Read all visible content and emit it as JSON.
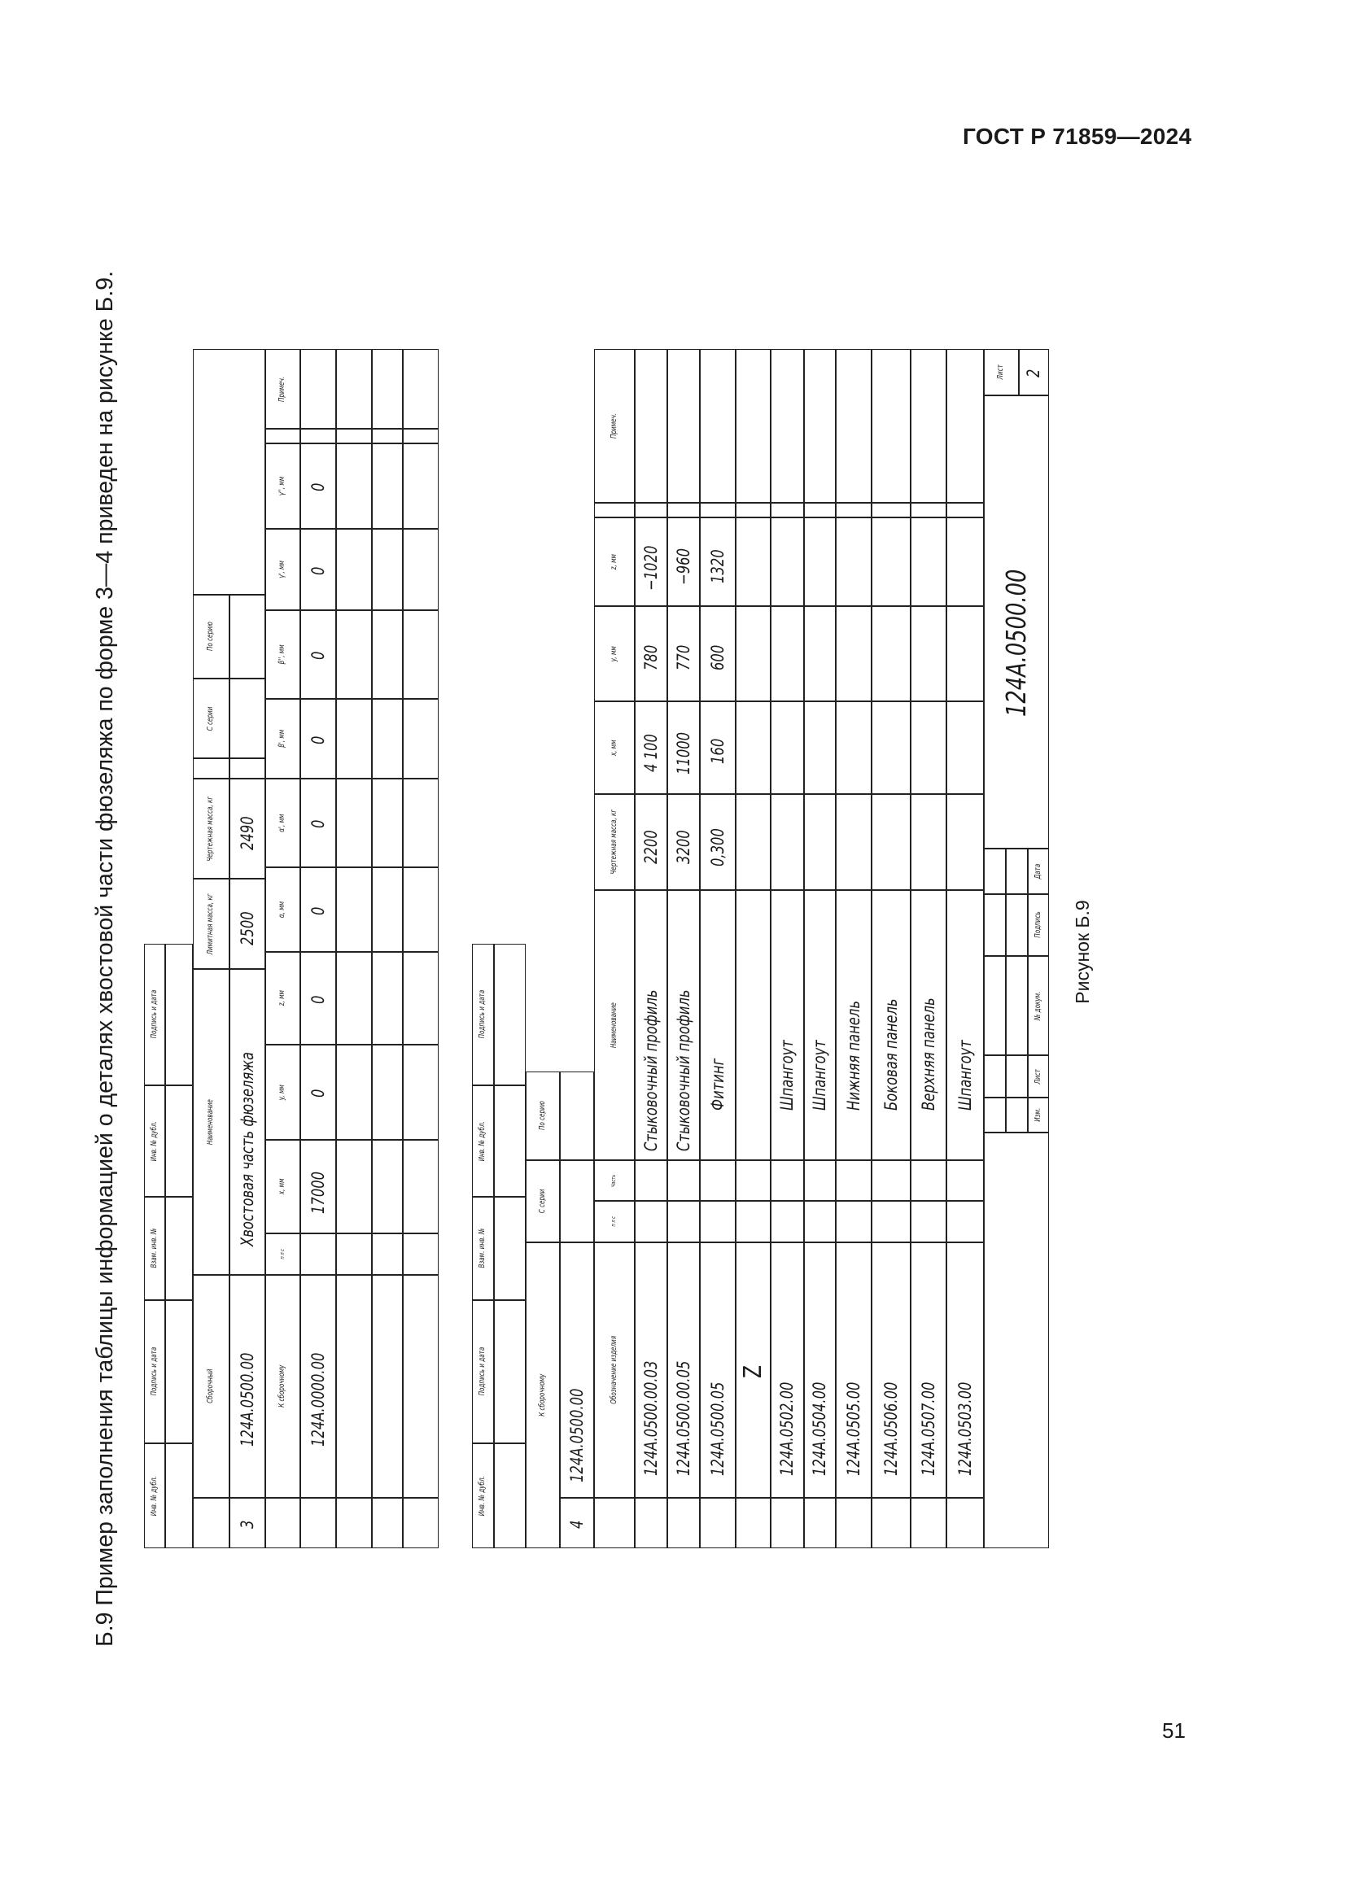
{
  "header": {
    "standard": "ГОСТ Р 71859—2024"
  },
  "intro_text": "Б.9 Пример заполнения таблицы информацией о деталях хвостовой части фюзеляжа по форме 3—4 приведен на рисунке Б.9.",
  "figure_caption": "Рисунок Б.9",
  "page_number": "51",
  "stamp_strip": [
    "Инв. № дубл.",
    "Подпись и дата",
    "Взам. инв. №",
    "Инв. № дубл.",
    "Подпись и дата"
  ],
  "form3": {
    "form_number": "3",
    "headers": {
      "assembly": "Сборочный",
      "name": "Наименование",
      "limit_mass": "Лимитная масса, кг",
      "drawing_mass": "Чертежная масса, кг",
      "from_series": "С серии",
      "to_series": "По серию",
      "to_assembly": "К сборочному",
      "pls": "п л с",
      "x": "x, мм",
      "y": "y, мм",
      "z": "z, мм",
      "alpha": "α, мм",
      "alpha1": "α', мм",
      "beta1": "β', мм",
      "beta2": "β'', мм",
      "gamma1": "γ', мм",
      "gamma2": "γ'', мм",
      "note": "Примеч."
    },
    "values": {
      "assembly": "124А.0500.00",
      "name": "Хвостовая часть фюзеляжа",
      "limit_mass": "2500",
      "drawing_mass": "2490",
      "to_assembly": "124А.0000.00",
      "x": "17000",
      "y": "0",
      "z": "0",
      "alpha": "0",
      "alpha1": "0",
      "beta1": "0",
      "beta2": "0",
      "gamma1": "0",
      "gamma2": "0"
    }
  },
  "form4": {
    "form_number": "4",
    "headers": {
      "to_assembly": "К сборочному",
      "from_series": "С серии",
      "to_series": "По серию",
      "pls": "п л с",
      "part": "Часть",
      "designation": "Обозначение изделия",
      "name": "Наименование",
      "drawing_mass": "Чертежная масса, кг",
      "x": "x, мм",
      "y": "y, мм",
      "z": "z, мм",
      "note": "Примеч."
    },
    "to_assembly": "124А.0500.00",
    "rows": [
      {
        "designation": "124А.0500.00.03",
        "name": "Стыковочный профиль",
        "mass": "2200",
        "x": "4 100",
        "y": "780",
        "z": "−1020"
      },
      {
        "designation": "124А.0500.00.05",
        "name": "Стыковочный профиль",
        "mass": "3200",
        "x": "11000",
        "y": "770",
        "z": "−960"
      },
      {
        "designation": "124А.0500.05",
        "name": "Фитинг",
        "mass": "0,300",
        "x": "160",
        "y": "600",
        "z": "1320"
      },
      {
        "designation": "Z",
        "name": "",
        "mass": "",
        "x": "",
        "y": "",
        "z": ""
      },
      {
        "designation": "124А.0502.00",
        "name": "Шпангоут",
        "mass": "",
        "x": "",
        "y": "",
        "z": ""
      },
      {
        "designation": "124А.0504.00",
        "name": "Шпангоут",
        "mass": "",
        "x": "",
        "y": "",
        "z": ""
      },
      {
        "designation": "124А.0505.00",
        "name": "Нижняя панель",
        "mass": "",
        "x": "",
        "y": "",
        "z": ""
      },
      {
        "designation": "124А.0506.00",
        "name": "Боковая панель",
        "mass": "",
        "x": "",
        "y": "",
        "z": ""
      },
      {
        "designation": "124А.0507.00",
        "name": "Верхняя панель",
        "mass": "",
        "x": "",
        "y": "",
        "z": ""
      },
      {
        "designation": "124А.0503.00",
        "name": "Шпангоут",
        "mass": "",
        "x": "",
        "y": "",
        "z": ""
      }
    ]
  },
  "title_block": {
    "labels": {
      "change": "Изм.",
      "sheet": "Лист",
      "doc_no": "№ докум.",
      "signature": "Подпись",
      "date": "Дата"
    },
    "designation": "124А.0500.00",
    "sheet_label": "Лист",
    "sheet_number": "2"
  }
}
